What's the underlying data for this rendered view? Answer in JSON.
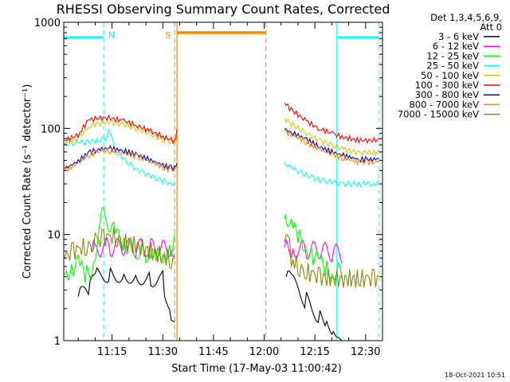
{
  "chart_data": {
    "type": "line",
    "title": "RHESSI Observing Summary Count Rates, Corrected",
    "xlabel": "Start Time (17-May-03 11:00:42)",
    "ylabel": "Corrected Count Rate (s⁻¹ detector⁻¹)",
    "y_scale": "log",
    "ylim": [
      1,
      1000
    ],
    "xlim_minutes_after_11_00": [
      0.7,
      95
    ],
    "x_ticks": [
      {
        "label": "11:15",
        "minute": 15
      },
      {
        "label": "11:30",
        "minute": 30
      },
      {
        "label": "11:45",
        "minute": 45
      },
      {
        "label": "12:00",
        "minute": 60
      },
      {
        "label": "12:15",
        "minute": 75
      },
      {
        "label": "12:30",
        "minute": 90
      }
    ],
    "y_ticks": [
      {
        "label": "1",
        "value": 1
      },
      {
        "label": "10",
        "value": 10
      },
      {
        "label": "100",
        "value": 100
      },
      {
        "label": "1000",
        "value": 1000
      }
    ],
    "legend_header": [
      "Det 1,3,4,5,6,9,",
      "Att 0"
    ],
    "series": [
      {
        "name": "3 - 6 keV",
        "color": "#000000",
        "x": [
          5,
          8,
          10,
          14,
          18,
          22,
          26,
          30,
          32,
          33.5,
          66.5,
          68,
          72,
          76,
          78,
          80,
          82,
          83
        ],
        "y": [
          2.6,
          2.7,
          4.0,
          4.4,
          4.3,
          4.2,
          4.0,
          3.8,
          2.0,
          1.5,
          4.0,
          3.5,
          2.5,
          1.8,
          1.6,
          1.4,
          1.3,
          1.2
        ]
      },
      {
        "name": "6 - 12 keV",
        "color": "#ff00ff",
        "x": [
          9,
          10,
          14,
          18,
          22,
          26,
          30,
          32,
          33.5,
          66,
          68,
          72,
          76,
          80,
          83
        ],
        "y": [
          7.0,
          7.5,
          7.6,
          7.5,
          7.5,
          7.5,
          7.5,
          7.6,
          7.5,
          7.5,
          7.3,
          7.2,
          7.0,
          6.8,
          6.5
        ]
      },
      {
        "name": "12 - 25 keV",
        "color": "#00ff00",
        "x": [
          1,
          3,
          5,
          7,
          9,
          10,
          11,
          12,
          13,
          14,
          16,
          18,
          22,
          26,
          28,
          30,
          32,
          33.5,
          66,
          66.5,
          68,
          70,
          72,
          74,
          76,
          78,
          80,
          83
        ],
        "y": [
          4.2,
          4.8,
          5.4,
          4.0,
          4.8,
          7.0,
          10.5,
          14.5,
          15.5,
          13.0,
          10.0,
          8.5,
          7.2,
          6.4,
          6.0,
          6.5,
          7.2,
          8.5,
          14.0,
          16.0,
          12.0,
          9.5,
          8.0,
          6.5,
          5.5,
          4.8,
          4.5,
          4.4
        ]
      },
      {
        "name": "25 - 50 keV",
        "color": "#00ffff",
        "x": [
          1,
          5,
          10,
          13,
          14,
          15,
          16,
          18,
          22,
          26,
          30,
          32,
          33.5,
          66,
          68,
          72,
          76,
          80,
          83,
          88,
          90,
          92,
          94
        ],
        "y": [
          72,
          73,
          76,
          80,
          98,
          78,
          62,
          52,
          42,
          36,
          32,
          31,
          30,
          48,
          42,
          37,
          33,
          31,
          30,
          30,
          30,
          30,
          31
        ]
      },
      {
        "name": "50 - 100 keV",
        "color": "#cccc00",
        "x": [
          1,
          5,
          8,
          10,
          12,
          14,
          18,
          22,
          26,
          30,
          32,
          33.5,
          34.2,
          66,
          68,
          72,
          76,
          80,
          83,
          88,
          90,
          92,
          94
        ],
        "y": [
          74,
          80,
          104,
          110,
          113,
          114,
          110,
          100,
          89,
          79,
          76,
          74,
          89,
          125,
          110,
          92,
          78,
          70,
          64,
          59,
          59,
          59,
          60
        ]
      },
      {
        "name": "100 - 300 keV",
        "color": "#ff0000",
        "x": [
          1,
          5,
          8,
          10,
          12,
          14,
          18,
          22,
          26,
          30,
          32,
          33.5,
          34.2,
          66,
          68,
          72,
          76,
          80,
          83,
          88,
          90,
          92,
          94
        ],
        "y": [
          77,
          87,
          120,
          123,
          126,
          125,
          119,
          108,
          95,
          84,
          79,
          76,
          94,
          175,
          150,
          120,
          100,
          90,
          83,
          77,
          77,
          77,
          78
        ]
      },
      {
        "name": "300 - 800 keV",
        "color": "#0000cc",
        "x": [
          1,
          5,
          8,
          10,
          12,
          14,
          18,
          22,
          26,
          30,
          32,
          33.5,
          34.2,
          66,
          68,
          72,
          76,
          80,
          83,
          88,
          90,
          92,
          94
        ],
        "y": [
          42,
          49,
          59,
          62,
          64,
          65,
          62,
          57,
          51,
          45,
          43,
          42,
          46,
          98,
          92,
          80,
          68,
          60,
          56,
          51,
          51,
          51,
          52
        ]
      },
      {
        "name": "800 - 7000 keV",
        "color": "#ff8800",
        "x": [
          1,
          5,
          8,
          10,
          12,
          14,
          18,
          22,
          26,
          30,
          32,
          33.5,
          34.2,
          66,
          68,
          72,
          76,
          80,
          83,
          88,
          90,
          92,
          94
        ],
        "y": [
          40,
          47,
          56,
          59,
          61,
          62,
          59,
          55,
          49,
          43,
          41,
          40,
          44,
          94,
          88,
          76,
          64,
          57,
          53,
          48,
          48,
          48,
          49
        ]
      },
      {
        "name": "7000 - 15000 keV",
        "color": "#888800",
        "x": [
          1,
          3,
          5,
          7,
          9,
          10,
          12,
          14,
          16,
          18,
          22,
          26,
          30,
          32,
          33.5,
          66,
          67,
          68,
          70,
          72,
          74,
          76,
          80,
          83,
          88,
          90,
          92,
          94
        ],
        "y": [
          6.0,
          6.8,
          7.3,
          7.6,
          8.0,
          8.5,
          9.0,
          9.5,
          9.5,
          8.5,
          7.8,
          7.0,
          6.2,
          5.8,
          5.5,
          8.5,
          9.5,
          6.0,
          5.0,
          4.5,
          4.2,
          4.0,
          3.8,
          3.8,
          3.8,
          3.8,
          3.8,
          3.8
        ]
      }
    ],
    "annotations": [
      {
        "label": "N",
        "color": "#00ffff",
        "x_minutes": 12.5
      },
      {
        "label": "S",
        "color": "#ff8800",
        "x_minutes": 33.5
      }
    ],
    "cyan_dashed_lines_min": [
      12.5,
      94
    ],
    "cyan_solid_lines_min": [
      0.7,
      81.5
    ],
    "orange_dashed_lines_min": [
      33.5,
      60.5
    ],
    "orange_solid_lines_min": [
      34.2
    ],
    "night_bars_min": [
      [
        0.7,
        12.5
      ],
      [
        81.5,
        94
      ]
    ],
    "saa_bar_min": [
      [
        34.2,
        60.5
      ]
    ],
    "timestamp": "18-Oct-2021 10:51"
  }
}
